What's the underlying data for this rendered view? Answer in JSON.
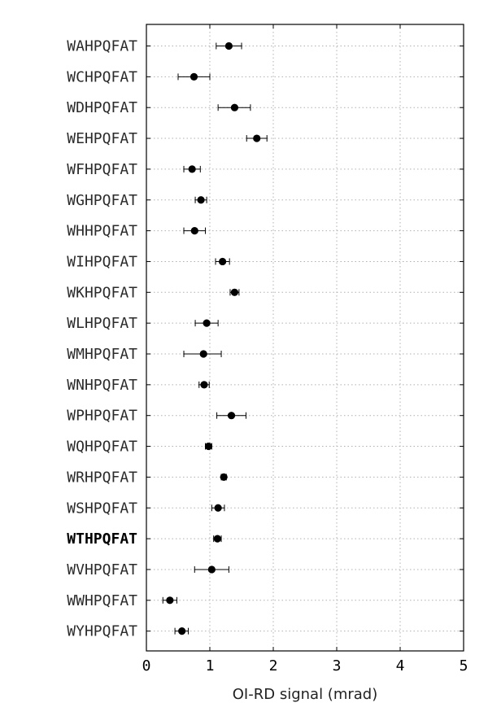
{
  "chart_data": {
    "type": "scatter",
    "orientation": "horizontal",
    "xlabel": "OI-RD signal (mrad)",
    "xlim": [
      0,
      5
    ],
    "xticks": [
      0,
      1,
      2,
      3,
      4,
      5
    ],
    "grid": true,
    "highlight_category": "WTHPQFAT",
    "point_color": "#000000",
    "series": [
      {
        "categories": [
          "WAHPQFAT",
          "WCHPQFAT",
          "WDHPQFAT",
          "WEHPQFAT",
          "WFHPQFAT",
          "WGHPQFAT",
          "WHHPQFAT",
          "WIHPQFAT",
          "WKHPQFAT",
          "WLHPQFAT",
          "WMHPQFAT",
          "WNHPQFAT",
          "WPHPQFAT",
          "WQHPQFAT",
          "WRHPQFAT",
          "WSHPQFAT",
          "WTHPQFAT",
          "WVHPQFAT",
          "WWHPQFAT",
          "WYHPQFAT"
        ],
        "values": [
          1.3,
          0.75,
          1.39,
          1.74,
          0.72,
          0.86,
          0.76,
          1.2,
          1.39,
          0.95,
          0.9,
          0.91,
          1.34,
          0.98,
          1.22,
          1.13,
          1.12,
          1.03,
          0.37,
          0.56
        ],
        "err_low": [
          1.1,
          0.5,
          1.13,
          1.58,
          0.59,
          0.77,
          0.59,
          1.09,
          1.32,
          0.77,
          0.59,
          0.83,
          1.11,
          0.93,
          1.18,
          1.03,
          1.06,
          0.76,
          0.26,
          0.45
        ],
        "err_high": [
          1.5,
          1.0,
          1.64,
          1.9,
          0.85,
          0.95,
          0.93,
          1.31,
          1.46,
          1.13,
          1.18,
          0.99,
          1.57,
          1.03,
          1.26,
          1.23,
          1.18,
          1.3,
          0.48,
          0.66
        ]
      }
    ]
  }
}
